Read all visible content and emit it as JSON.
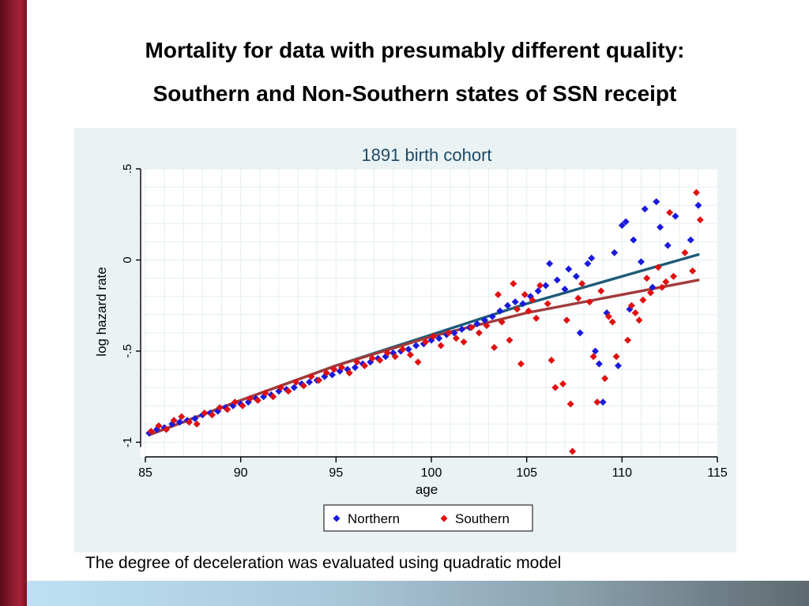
{
  "slide": {
    "title_line1": "Mortality for data with presumably different quality:",
    "title_line2": "Southern and Non-Southern states of SSN receipt",
    "caption": "The degree of deceleration was evaluated using quadratic model"
  },
  "colors": {
    "accent_bar": "#8b1a2e",
    "panel_bg": "#eaf2f3",
    "northern": "#1a1adc",
    "southern": "#e01010",
    "northern_fit": "#1e5a78",
    "southern_fit": "#a23a3a"
  },
  "chart_data": {
    "type": "scatter",
    "title": "1891 birth cohort",
    "xlabel": "age",
    "ylabel": "log hazard rate",
    "xlim": [
      85,
      115
    ],
    "ylim": [
      -1.05,
      0.5
    ],
    "x_ticks": [
      "85",
      "90",
      "95",
      "100",
      "105",
      "110",
      "115"
    ],
    "y_ticks": [
      {
        "value": 0.5,
        "label": ".5"
      },
      {
        "value": 0,
        "label": "0"
      },
      {
        "value": -0.5,
        "label": "-.5"
      },
      {
        "value": -1,
        "label": "-1"
      }
    ],
    "grid": "on",
    "legend_position": "bottom",
    "series": [
      {
        "name": "Northern",
        "marker": "diamond",
        "points": [
          [
            85.2,
            -0.95
          ],
          [
            85.6,
            -0.93
          ],
          [
            86.0,
            -0.92
          ],
          [
            86.4,
            -0.9
          ],
          [
            86.8,
            -0.89
          ],
          [
            87.2,
            -0.88
          ],
          [
            87.6,
            -0.87
          ],
          [
            88.0,
            -0.85
          ],
          [
            88.4,
            -0.84
          ],
          [
            88.8,
            -0.83
          ],
          [
            89.2,
            -0.81
          ],
          [
            89.6,
            -0.8
          ],
          [
            90.0,
            -0.79
          ],
          [
            90.4,
            -0.78
          ],
          [
            90.8,
            -0.76
          ],
          [
            91.2,
            -0.75
          ],
          [
            91.6,
            -0.74
          ],
          [
            92.0,
            -0.72
          ],
          [
            92.4,
            -0.71
          ],
          [
            92.8,
            -0.7
          ],
          [
            93.2,
            -0.68
          ],
          [
            93.6,
            -0.67
          ],
          [
            94.0,
            -0.66
          ],
          [
            94.4,
            -0.64
          ],
          [
            94.8,
            -0.63
          ],
          [
            95.2,
            -0.61
          ],
          [
            95.6,
            -0.6
          ],
          [
            96.0,
            -0.59
          ],
          [
            96.4,
            -0.57
          ],
          [
            96.8,
            -0.56
          ],
          [
            97.2,
            -0.54
          ],
          [
            97.6,
            -0.53
          ],
          [
            98.0,
            -0.51
          ],
          [
            98.4,
            -0.5
          ],
          [
            98.8,
            -0.49
          ],
          [
            99.2,
            -0.47
          ],
          [
            99.6,
            -0.46
          ],
          [
            100.0,
            -0.44
          ],
          [
            100.4,
            -0.43
          ],
          [
            100.8,
            -0.41
          ],
          [
            101.2,
            -0.4
          ],
          [
            101.6,
            -0.38
          ],
          [
            102.0,
            -0.37
          ],
          [
            102.4,
            -0.35
          ],
          [
            102.8,
            -0.33
          ],
          [
            103.2,
            -0.31
          ],
          [
            103.6,
            -0.28
          ],
          [
            104.0,
            -0.25
          ],
          [
            104.4,
            -0.23
          ],
          [
            104.8,
            -0.24
          ],
          [
            105.2,
            -0.2
          ],
          [
            105.6,
            -0.17
          ],
          [
            106.0,
            -0.14
          ],
          [
            106.2,
            -0.02
          ],
          [
            106.6,
            -0.11
          ],
          [
            107.0,
            -0.16
          ],
          [
            107.2,
            -0.05
          ],
          [
            107.6,
            -0.09
          ],
          [
            107.8,
            -0.4
          ],
          [
            108.2,
            -0.02
          ],
          [
            108.4,
            0.01
          ],
          [
            108.6,
            -0.5
          ],
          [
            108.8,
            -0.57
          ],
          [
            109.0,
            -0.78
          ],
          [
            109.2,
            -0.29
          ],
          [
            109.6,
            0.04
          ],
          [
            109.8,
            -0.58
          ],
          [
            110.0,
            0.19
          ],
          [
            110.2,
            0.21
          ],
          [
            110.4,
            -0.27
          ],
          [
            110.6,
            0.11
          ],
          [
            111.0,
            -0.01
          ],
          [
            111.2,
            0.28
          ],
          [
            111.6,
            -0.15
          ],
          [
            111.8,
            0.32
          ],
          [
            112.0,
            0.18
          ],
          [
            112.4,
            0.08
          ],
          [
            112.8,
            0.24
          ],
          [
            113.6,
            0.11
          ],
          [
            114.0,
            0.3
          ]
        ]
      },
      {
        "name": "Southern",
        "marker": "diamond",
        "points": [
          [
            85.3,
            -0.94
          ],
          [
            85.7,
            -0.91
          ],
          [
            86.1,
            -0.93
          ],
          [
            86.5,
            -0.88
          ],
          [
            86.9,
            -0.86
          ],
          [
            87.3,
            -0.89
          ],
          [
            87.7,
            -0.9
          ],
          [
            88.1,
            -0.84
          ],
          [
            88.5,
            -0.85
          ],
          [
            88.9,
            -0.81
          ],
          [
            89.3,
            -0.82
          ],
          [
            89.7,
            -0.78
          ],
          [
            90.1,
            -0.8
          ],
          [
            90.5,
            -0.76
          ],
          [
            90.9,
            -0.77
          ],
          [
            91.3,
            -0.73
          ],
          [
            91.7,
            -0.75
          ],
          [
            92.1,
            -0.7
          ],
          [
            92.5,
            -0.72
          ],
          [
            92.9,
            -0.67
          ],
          [
            93.3,
            -0.69
          ],
          [
            93.7,
            -0.64
          ],
          [
            94.1,
            -0.66
          ],
          [
            94.5,
            -0.62
          ],
          [
            94.9,
            -0.6
          ],
          [
            95.3,
            -0.59
          ],
          [
            95.7,
            -0.62
          ],
          [
            96.1,
            -0.56
          ],
          [
            96.5,
            -0.58
          ],
          [
            96.9,
            -0.54
          ],
          [
            97.3,
            -0.55
          ],
          [
            97.7,
            -0.51
          ],
          [
            98.1,
            -0.53
          ],
          [
            98.5,
            -0.49
          ],
          [
            98.9,
            -0.52
          ],
          [
            99.3,
            -0.56
          ],
          [
            99.7,
            -0.45
          ],
          [
            100.1,
            -0.42
          ],
          [
            100.5,
            -0.47
          ],
          [
            100.9,
            -0.4
          ],
          [
            101.3,
            -0.43
          ],
          [
            101.7,
            -0.45
          ],
          [
            102.1,
            -0.37
          ],
          [
            102.5,
            -0.4
          ],
          [
            102.9,
            -0.36
          ],
          [
            103.3,
            -0.48
          ],
          [
            103.5,
            -0.19
          ],
          [
            103.7,
            -0.34
          ],
          [
            104.1,
            -0.44
          ],
          [
            104.3,
            -0.13
          ],
          [
            104.5,
            -0.27
          ],
          [
            104.7,
            -0.57
          ],
          [
            104.9,
            -0.19
          ],
          [
            105.1,
            -0.28
          ],
          [
            105.3,
            -0.22
          ],
          [
            105.5,
            -0.32
          ],
          [
            105.7,
            -0.14
          ],
          [
            106.1,
            -0.24
          ],
          [
            106.3,
            -0.55
          ],
          [
            106.5,
            -0.7
          ],
          [
            106.9,
            -0.68
          ],
          [
            107.1,
            -0.33
          ],
          [
            107.3,
            -0.79
          ],
          [
            107.4,
            -1.05
          ],
          [
            107.7,
            -0.21
          ],
          [
            107.9,
            -0.13
          ],
          [
            108.3,
            -0.23
          ],
          [
            108.5,
            -0.53
          ],
          [
            108.7,
            -0.78
          ],
          [
            108.9,
            -0.17
          ],
          [
            109.1,
            -0.65
          ],
          [
            109.3,
            -0.31
          ],
          [
            109.5,
            -0.34
          ],
          [
            109.7,
            -0.53
          ],
          [
            110.3,
            -0.44
          ],
          [
            110.5,
            -0.25
          ],
          [
            110.7,
            -0.29
          ],
          [
            110.9,
            -0.33
          ],
          [
            111.1,
            -0.22
          ],
          [
            111.5,
            -0.18
          ],
          [
            111.9,
            -0.04
          ],
          [
            112.1,
            -0.15
          ],
          [
            112.5,
            0.26
          ],
          [
            112.7,
            -0.09
          ],
          [
            113.3,
            0.04
          ],
          [
            113.9,
            0.37
          ],
          [
            114.1,
            0.22
          ],
          [
            113.7,
            -0.06
          ],
          [
            111.3,
            -0.1
          ],
          [
            112.3,
            -0.12
          ]
        ]
      }
    ],
    "fit_lines": [
      {
        "series": "Northern",
        "model": "quadratic",
        "x": [
          85.2,
          90,
          95,
          100,
          105,
          110,
          114
        ],
        "y": [
          -0.96,
          -0.77,
          -0.58,
          -0.41,
          -0.24,
          -0.09,
          0.03
        ]
      },
      {
        "series": "Southern",
        "model": "quadratic",
        "x": [
          85.2,
          90,
          95,
          100,
          105,
          110,
          114
        ],
        "y": [
          -0.96,
          -0.77,
          -0.58,
          -0.42,
          -0.29,
          -0.19,
          -0.11
        ]
      }
    ]
  }
}
